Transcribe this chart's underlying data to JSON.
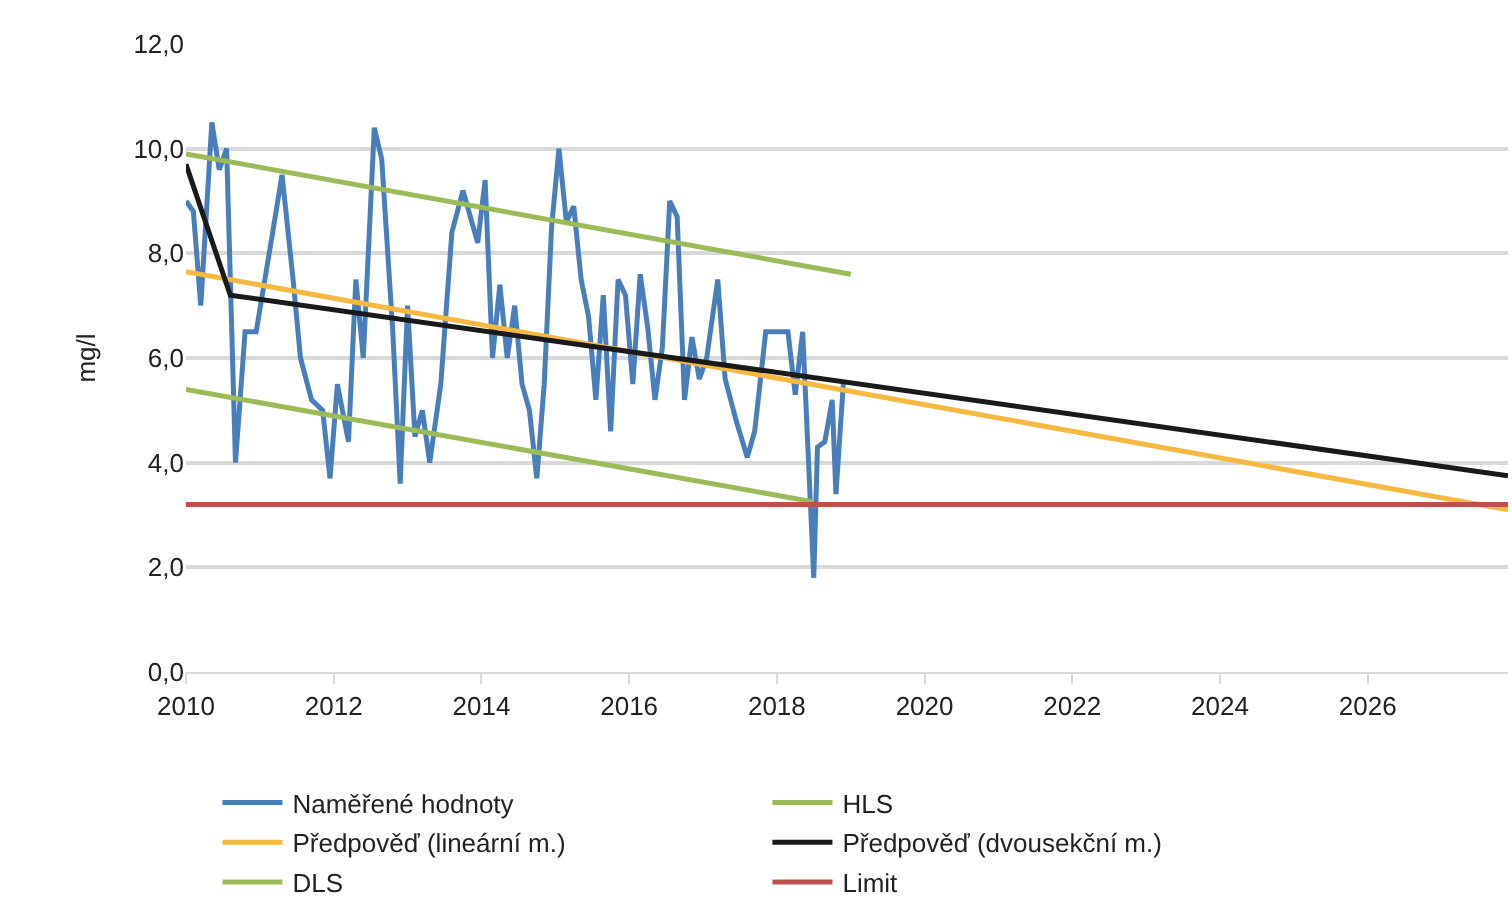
{
  "chart_data": {
    "type": "line",
    "ylabel": "mg/l",
    "xlim": [
      2010,
      2027.9
    ],
    "xticks": [
      2010,
      2012,
      2014,
      2016,
      2018,
      2020,
      2022,
      2024,
      2026
    ],
    "ylim": [
      0,
      12
    ],
    "yticks": [
      {
        "value": 0,
        "label": "0,0"
      },
      {
        "value": 2,
        "label": "2,0"
      },
      {
        "value": 4,
        "label": "4,0"
      },
      {
        "value": 6,
        "label": "6,0"
      },
      {
        "value": 8,
        "label": "8,0"
      },
      {
        "value": 10,
        "label": "10,0"
      },
      {
        "value": 12,
        "label": "12,0"
      }
    ],
    "grid": "y",
    "legend": "bottom",
    "marker": "none",
    "line_style": "solid",
    "series": [
      {
        "name": "Naměřené hodnoty",
        "color": "#4a7ebb",
        "x": [
          2010.0,
          2010.1,
          2010.2,
          2010.35,
          2010.45,
          2010.55,
          2010.67,
          2010.8,
          2010.95,
          2011.15,
          2011.3,
          2011.45,
          2011.55,
          2011.7,
          2011.85,
          2011.95,
          2012.05,
          2012.2,
          2012.3,
          2012.4,
          2012.55,
          2012.65,
          2012.8,
          2012.9,
          2013.0,
          2013.1,
          2013.2,
          2013.3,
          2013.45,
          2013.6,
          2013.75,
          2013.85,
          2013.95,
          2014.05,
          2014.15,
          2014.25,
          2014.35,
          2014.45,
          2014.55,
          2014.65,
          2014.75,
          2014.85,
          2014.95,
          2015.05,
          2015.15,
          2015.25,
          2015.35,
          2015.45,
          2015.55,
          2015.65,
          2015.75,
          2015.85,
          2015.95,
          2016.05,
          2016.15,
          2016.25,
          2016.35,
          2016.45,
          2016.55,
          2016.65,
          2016.75,
          2016.85,
          2016.95,
          2017.05,
          2017.2,
          2017.3,
          2017.45,
          2017.6,
          2017.7,
          2017.85,
          2018.15,
          2018.25,
          2018.35,
          2018.5,
          2018.55,
          2018.65,
          2018.75,
          2018.8,
          2018.9
        ],
        "values": [
          9.0,
          8.8,
          7.0,
          10.5,
          9.6,
          10.0,
          4.0,
          6.5,
          6.5,
          8.2,
          9.5,
          7.5,
          6.0,
          5.2,
          5.0,
          3.7,
          5.5,
          4.4,
          7.5,
          6.0,
          10.4,
          9.8,
          6.5,
          3.6,
          7.0,
          4.5,
          5.0,
          4.0,
          5.5,
          8.4,
          9.2,
          8.7,
          8.2,
          9.4,
          6.0,
          7.4,
          6.0,
          7.0,
          5.5,
          5.0,
          3.7,
          5.5,
          8.5,
          10.0,
          8.6,
          8.9,
          7.5,
          6.8,
          5.2,
          7.2,
          4.6,
          7.5,
          7.2,
          5.5,
          7.6,
          6.6,
          5.2,
          6.2,
          9.0,
          8.7,
          5.2,
          6.4,
          5.6,
          6.0,
          7.5,
          5.6,
          4.8,
          4.1,
          4.6,
          6.5,
          6.5,
          5.3,
          6.5,
          1.8,
          4.3,
          4.4,
          5.2,
          3.4,
          5.5
        ]
      },
      {
        "name": "HLS",
        "color": "#9bbb59",
        "x": [
          2010,
          2019
        ],
        "values": [
          9.9,
          7.6
        ]
      },
      {
        "name": "Předpověď (lineární m.)",
        "color": "#f5b942",
        "x": [
          2010,
          2027.9
        ],
        "values": [
          7.65,
          3.1
        ]
      },
      {
        "name": "Předpověď (dvousekční m.)",
        "color": "#1a1a1a",
        "x": [
          2010,
          2010.6,
          2027.9
        ],
        "values": [
          9.7,
          7.2,
          3.75
        ]
      },
      {
        "name": "DLS",
        "color": "#9bbb59",
        "x": [
          2010,
          2018.5
        ],
        "values": [
          5.4,
          3.25
        ]
      },
      {
        "name": "Limit",
        "color": "#c0504d",
        "x": [
          2010,
          2027.9
        ],
        "values": [
          3.2,
          3.2
        ]
      }
    ]
  }
}
